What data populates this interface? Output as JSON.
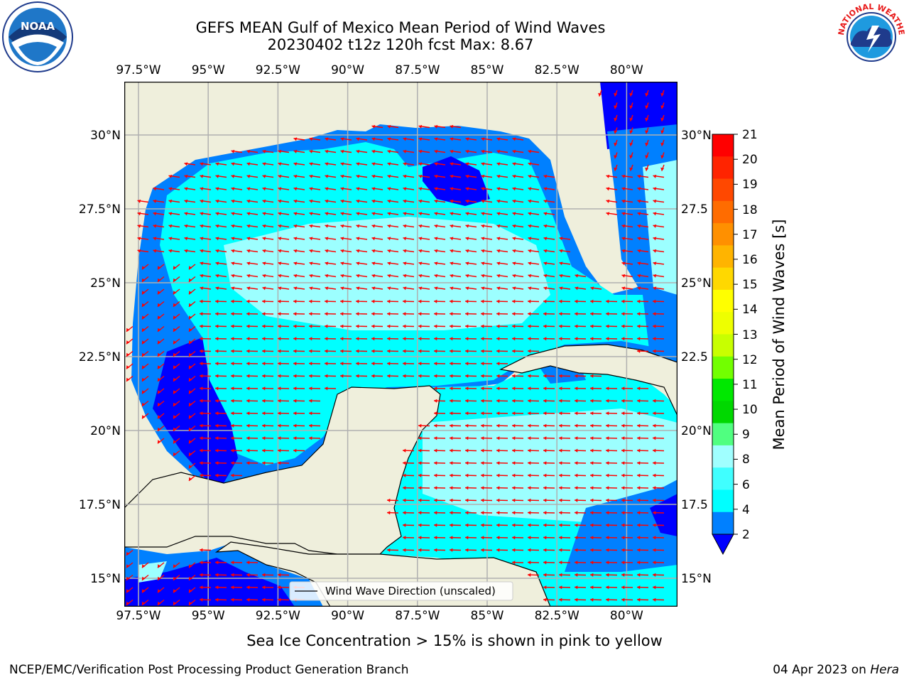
{
  "title_line1": "GEFS MEAN Gulf of Mexico Mean Period of Wind Waves",
  "title_line2": "20230402 t12z 120h fcst   Max: 8.67",
  "lon_ticks": [
    "97.5°W",
    "95°W",
    "92.5°W",
    "90°W",
    "87.5°W",
    "85°W",
    "82.5°W",
    "80°W"
  ],
  "lat_ticks_left": [
    "30°N",
    "27.5°N",
    "25°N",
    "22.5°N",
    "20°N",
    "17.5°N",
    "15°N"
  ],
  "lat_ticks_right": [
    "30°N",
    "27.5",
    "25°N",
    "22.5",
    "20°N",
    "17.5",
    "15°N"
  ],
  "legend_text": "Wind Wave Direction (unscaled)",
  "colorbar": {
    "label": "Mean Period of Wind Waves [s]",
    "ticks": [
      "21",
      "20",
      "19",
      "18",
      "17",
      "16",
      "15",
      "14",
      "13",
      "12",
      "11",
      "10",
      "9",
      "8",
      "6",
      "4",
      "2"
    ],
    "colors": [
      "#ff0000",
      "#ff2400",
      "#ff4800",
      "#ff6c00",
      "#ff9000",
      "#ffb400",
      "#ffd800",
      "#ffff00",
      "#eeff00",
      "#c8ff00",
      "#72ff00",
      "#00e800",
      "#00d800",
      "#50ff80",
      "#a0ffff",
      "#40ffff",
      "#00ffff",
      "#0080ff",
      "#0000ff"
    ]
  },
  "colors": {
    "land": "#efefdc",
    "water_fill": "#00ffff",
    "arrow": "#ff0000",
    "grid": "#b0b0b0"
  },
  "logos": {
    "noaa_text": "NOAA",
    "nws_text": "NATIONAL WEATHER SERVICE"
  },
  "sea_ice_note": "Sea Ice Concentration > 15% is shown in pink to yellow",
  "footer_left": "NCEP/EMC/Verification Post Processing Product Generation Branch",
  "footer_right_date": "04 Apr 2023 on ",
  "footer_right_machine": "Hera"
}
